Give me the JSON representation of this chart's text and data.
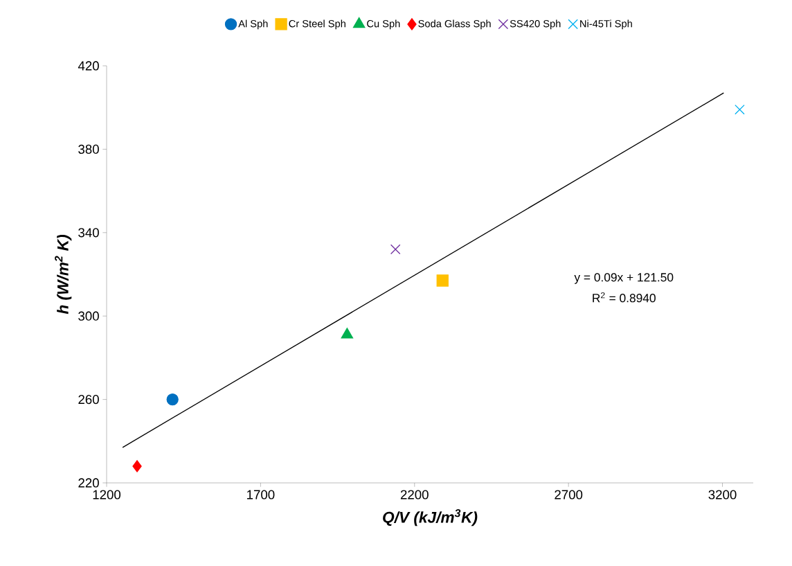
{
  "chart_data": {
    "type": "scatter",
    "xlabel": "Q/V (kJ/m$^{3}$K)",
    "ylabel": "h (W/m$^{2}$ K)",
    "xlim": [
      1200,
      3300
    ],
    "ylim": [
      220,
      420
    ],
    "xticks": [
      1200,
      1700,
      2200,
      2700,
      3200
    ],
    "yticks": [
      220,
      260,
      300,
      340,
      380,
      420
    ],
    "grid": false,
    "legend": "top",
    "series": [
      {
        "name": "Al Sph",
        "color": "#0070c0",
        "marker": "circle",
        "x": [
          1414
        ],
        "values": [
          260
        ]
      },
      {
        "name": "Cr Steel Sph",
        "color": "#ffc000",
        "marker": "square",
        "x": [
          2291
        ],
        "values": [
          317
        ]
      },
      {
        "name": "Cu Sph",
        "color": "#00b050",
        "marker": "triangle",
        "x": [
          1981
        ],
        "values": [
          291
        ]
      },
      {
        "name": "Soda Glass Sph",
        "color": "#ff0000",
        "marker": "diamond",
        "x": [
          1299
        ],
        "values": [
          228
        ]
      },
      {
        "name": "SS420 Sph",
        "color": "#7030a0",
        "marker": "cross",
        "x": [
          2138
        ],
        "values": [
          332
        ]
      },
      {
        "name": "Ni-45Ti Sph",
        "color": "#00b0f0",
        "marker": "cross",
        "x": [
          3256
        ],
        "values": [
          399
        ]
      },
      {
        "type": "line",
        "color": "#000000",
        "marker": "none",
        "x": [
          1252,
          3204
        ],
        "values": [
          237,
          407
        ]
      }
    ],
    "annotations": [
      "y = 0.09x + 121.50",
      "R$^{2}$ = 0.8940"
    ]
  }
}
